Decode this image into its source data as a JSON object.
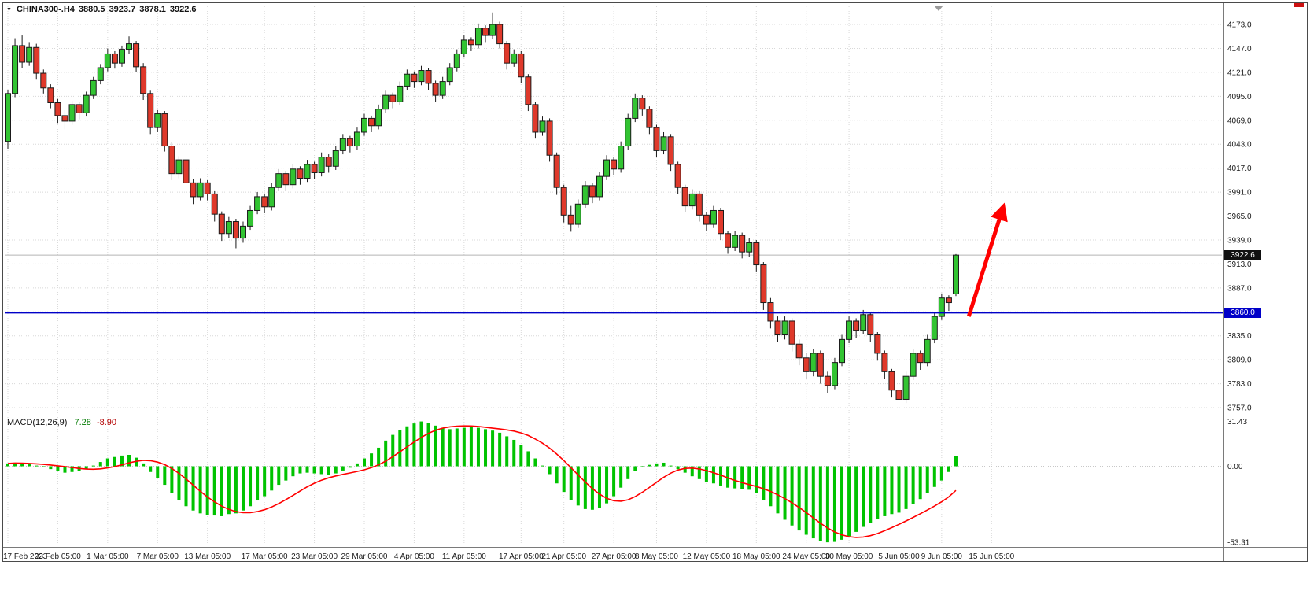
{
  "header": {
    "symbol": "CHINA300-.H4",
    "open": "3880.5",
    "high": "3923.7",
    "low": "3878.1",
    "close": "3922.6"
  },
  "macd_label": {
    "name": "MACD(12,26,9)",
    "value": "7.28",
    "signal": "-8.90"
  },
  "badges": {
    "current": "3922.6",
    "hline": "3860.0"
  },
  "colors": {
    "bull": "#32c432",
    "bear": "#df392b",
    "candle_border": "#1a1a1a",
    "macd_hist": "#00c300",
    "macd_signal": "#ff0000",
    "hline": "#0000c8",
    "arrow": "#ff0000",
    "grid": "#d8d8d8",
    "frame": "#4a4a4a",
    "current_price_line": "#b4b4b4"
  },
  "chart_data": {
    "type": "candlestick+macd",
    "symbol": "CHINA300-.H4",
    "timeframe": "H4",
    "last_quote": {
      "open": 3880.5,
      "high": 3923.7,
      "low": 3878.1,
      "close": 3922.6
    },
    "current_price": 3922.6,
    "price_axis": {
      "max": 4173.0,
      "min": 3757.0,
      "step": 26.0,
      "labels": [
        "4173.0",
        "4147.0",
        "4121.0",
        "4095.0",
        "4069.0",
        "4043.0",
        "4017.0",
        "3991.0",
        "3965.0",
        "3939.0",
        "3913.0",
        "3887.0",
        "3861.0",
        "3835.0",
        "3809.0",
        "3783.0",
        "3757.0"
      ]
    },
    "hline": {
      "price": 3860.0
    },
    "x_labels": [
      {
        "i": 0,
        "t": "17 Feb 2023"
      },
      {
        "i": 7,
        "t": "23 Feb 05:00"
      },
      {
        "i": 14,
        "t": "1 Mar 05:00"
      },
      {
        "i": 21,
        "t": "7 Mar 05:00"
      },
      {
        "i": 28,
        "t": "13 Mar 05:00"
      },
      {
        "i": 36,
        "t": "17 Mar 05:00"
      },
      {
        "i": 43,
        "t": "23 Mar 05:00"
      },
      {
        "i": 50,
        "t": "29 Mar 05:00"
      },
      {
        "i": 57,
        "t": "4 Apr 05:00"
      },
      {
        "i": 64,
        "t": "11 Apr 05:00"
      },
      {
        "i": 72,
        "t": "17 Apr 05:00"
      },
      {
        "i": 78,
        "t": "21 Apr 05:00"
      },
      {
        "i": 85,
        "t": "27 Apr 05:00"
      },
      {
        "i": 91,
        "t": "8 May 05:00"
      },
      {
        "i": 98,
        "t": "12 May 05:00"
      },
      {
        "i": 105,
        "t": "18 May 05:00"
      },
      {
        "i": 112,
        "t": "24 May 05:00"
      },
      {
        "i": 118,
        "t": "30 May 05:00"
      },
      {
        "i": 125,
        "t": "5 Jun 05:00"
      },
      {
        "i": 131,
        "t": "9 Jun 05:00"
      },
      {
        "i": 138,
        "t": "15 Jun 05:00"
      }
    ],
    "candles": [
      [
        4046,
        4102,
        4038,
        4098
      ],
      [
        4098,
        4158,
        4094,
        4150
      ],
      [
        4150,
        4161,
        4126,
        4132
      ],
      [
        4132,
        4153,
        4128,
        4148
      ],
      [
        4148,
        4152,
        4113,
        4120
      ],
      [
        4120,
        4124,
        4098,
        4104
      ],
      [
        4104,
        4108,
        4082,
        4088
      ],
      [
        4088,
        4092,
        4066,
        4074
      ],
      [
        4074,
        4080,
        4059,
        4068
      ],
      [
        4068,
        4090,
        4064,
        4086
      ],
      [
        4086,
        4089,
        4070,
        4077
      ],
      [
        4077,
        4100,
        4073,
        4096
      ],
      [
        4096,
        4116,
        4092,
        4112
      ],
      [
        4112,
        4130,
        4108,
        4126
      ],
      [
        4126,
        4147,
        4122,
        4141
      ],
      [
        4141,
        4144,
        4125,
        4131
      ],
      [
        4131,
        4150,
        4127,
        4146
      ],
      [
        4146,
        4160,
        4141,
        4152
      ],
      [
        4152,
        4155,
        4121,
        4127
      ],
      [
        4127,
        4131,
        4091,
        4098
      ],
      [
        4098,
        4101,
        4054,
        4061
      ],
      [
        4061,
        4080,
        4056,
        4076
      ],
      [
        4076,
        4079,
        4035,
        4041
      ],
      [
        4041,
        4045,
        4004,
        4011
      ],
      [
        4011,
        4030,
        4006,
        4026
      ],
      [
        4026,
        4029,
        3994,
        4001
      ],
      [
        4001,
        4005,
        3978,
        3986
      ],
      [
        3986,
        4006,
        3982,
        4001
      ],
      [
        4001,
        4004,
        3982,
        3989
      ],
      [
        3989,
        3992,
        3959,
        3967
      ],
      [
        3967,
        3970,
        3938,
        3946
      ],
      [
        3946,
        3964,
        3941,
        3959
      ],
      [
        3959,
        3962,
        3930,
        3941
      ],
      [
        3941,
        3959,
        3936,
        3954
      ],
      [
        3954,
        3976,
        3950,
        3971
      ],
      [
        3971,
        3991,
        3967,
        3986
      ],
      [
        3986,
        3989,
        3968,
        3975
      ],
      [
        3975,
        4001,
        3971,
        3996
      ],
      [
        3996,
        4016,
        3992,
        4011
      ],
      [
        4011,
        4014,
        3992,
        3999
      ],
      [
        3999,
        4021,
        3995,
        4016
      ],
      [
        4016,
        4019,
        3999,
        4006
      ],
      [
        4006,
        4026,
        4002,
        4021
      ],
      [
        4021,
        4024,
        4005,
        4012
      ],
      [
        4012,
        4034,
        4008,
        4029
      ],
      [
        4029,
        4032,
        4012,
        4019
      ],
      [
        4019,
        4041,
        4015,
        4036
      ],
      [
        4036,
        4054,
        4032,
        4049
      ],
      [
        4049,
        4052,
        4034,
        4041
      ],
      [
        4041,
        4061,
        4037,
        4056
      ],
      [
        4056,
        4076,
        4052,
        4071
      ],
      [
        4071,
        4074,
        4056,
        4063
      ],
      [
        4063,
        4086,
        4059,
        4081
      ],
      [
        4081,
        4101,
        4077,
        4096
      ],
      [
        4096,
        4099,
        4082,
        4089
      ],
      [
        4089,
        4111,
        4085,
        4106
      ],
      [
        4106,
        4124,
        4102,
        4119
      ],
      [
        4119,
        4122,
        4104,
        4111
      ],
      [
        4111,
        4128,
        4107,
        4123
      ],
      [
        4123,
        4126,
        4102,
        4109
      ],
      [
        4109,
        4112,
        4089,
        4096
      ],
      [
        4096,
        4116,
        4092,
        4111
      ],
      [
        4111,
        4131,
        4107,
        4126
      ],
      [
        4126,
        4146,
        4122,
        4141
      ],
      [
        4141,
        4161,
        4137,
        4156
      ],
      [
        4156,
        4159,
        4144,
        4151
      ],
      [
        4151,
        4174,
        4147,
        4169
      ],
      [
        4169,
        4172,
        4153,
        4161
      ],
      [
        4161,
        4186,
        4157,
        4173
      ],
      [
        4173,
        4176,
        4147,
        4152
      ],
      [
        4152,
        4155,
        4124,
        4131
      ],
      [
        4131,
        4146,
        4127,
        4141
      ],
      [
        4141,
        4144,
        4109,
        4116
      ],
      [
        4116,
        4119,
        4079,
        4086
      ],
      [
        4086,
        4089,
        4049,
        4056
      ],
      [
        4056,
        4073,
        4052,
        4068
      ],
      [
        4068,
        4071,
        4024,
        4031
      ],
      [
        4031,
        4034,
        3988,
        3996
      ],
      [
        3996,
        3999,
        3958,
        3966
      ],
      [
        3966,
        3976,
        3948,
        3956
      ],
      [
        3956,
        3983,
        3952,
        3978
      ],
      [
        3978,
        4003,
        3974,
        3998
      ],
      [
        3998,
        4001,
        3979,
        3986
      ],
      [
        3986,
        4013,
        3982,
        4008
      ],
      [
        4008,
        4031,
        4004,
        4026
      ],
      [
        4026,
        4029,
        4009,
        4016
      ],
      [
        4016,
        4046,
        4012,
        4041
      ],
      [
        4041,
        4076,
        4037,
        4071
      ],
      [
        4071,
        4098,
        4067,
        4093
      ],
      [
        4093,
        4096,
        4074,
        4081
      ],
      [
        4081,
        4084,
        4054,
        4061
      ],
      [
        4061,
        4064,
        4029,
        4036
      ],
      [
        4036,
        4056,
        4032,
        4051
      ],
      [
        4051,
        4054,
        4014,
        4021
      ],
      [
        4021,
        4024,
        3989,
        3996
      ],
      [
        3996,
        3999,
        3969,
        3976
      ],
      [
        3976,
        3994,
        3972,
        3989
      ],
      [
        3989,
        3992,
        3959,
        3966
      ],
      [
        3966,
        3969,
        3949,
        3956
      ],
      [
        3956,
        3976,
        3952,
        3971
      ],
      [
        3971,
        3974,
        3939,
        3946
      ],
      [
        3946,
        3949,
        3924,
        3931
      ],
      [
        3931,
        3949,
        3927,
        3944
      ],
      [
        3944,
        3947,
        3919,
        3926
      ],
      [
        3926,
        3941,
        3921,
        3936
      ],
      [
        3936,
        3939,
        3904,
        3912
      ],
      [
        3912,
        3915,
        3863,
        3871
      ],
      [
        3871,
        3876,
        3843,
        3851
      ],
      [
        3851,
        3856,
        3828,
        3836
      ],
      [
        3836,
        3856,
        3831,
        3851
      ],
      [
        3851,
        3854,
        3818,
        3826
      ],
      [
        3826,
        3831,
        3803,
        3811
      ],
      [
        3811,
        3816,
        3788,
        3796
      ],
      [
        3796,
        3821,
        3791,
        3816
      ],
      [
        3816,
        3819,
        3783,
        3791
      ],
      [
        3791,
        3796,
        3773,
        3781
      ],
      [
        3781,
        3811,
        3777,
        3806
      ],
      [
        3806,
        3836,
        3802,
        3831
      ],
      [
        3831,
        3856,
        3827,
        3851
      ],
      [
        3851,
        3854,
        3833,
        3841
      ],
      [
        3841,
        3863,
        3837,
        3858
      ],
      [
        3858,
        3861,
        3828,
        3836
      ],
      [
        3836,
        3839,
        3808,
        3816
      ],
      [
        3816,
        3819,
        3788,
        3796
      ],
      [
        3796,
        3799,
        3768,
        3776
      ],
      [
        3776,
        3779,
        3762,
        3766
      ],
      [
        3766,
        3796,
        3762,
        3791
      ],
      [
        3791,
        3821,
        3787,
        3816
      ],
      [
        3816,
        3819,
        3798,
        3806
      ],
      [
        3806,
        3836,
        3802,
        3831
      ],
      [
        3831,
        3861,
        3827,
        3856
      ],
      [
        3856,
        3881,
        3852,
        3876
      ],
      [
        3876,
        3879,
        3862,
        3871
      ],
      [
        3880.5,
        3923.7,
        3878.1,
        3922.6
      ]
    ],
    "macd": {
      "label": "MACD(12,26,9)",
      "value": 7.28,
      "signal_value": -8.9,
      "axis": {
        "max": 31.43,
        "zero": 0.0,
        "min": -53.31,
        "labels": [
          "31.43",
          "0.00",
          "-53.31"
        ]
      },
      "hist": [
        2,
        2.5,
        2,
        1.5,
        0.5,
        -0.5,
        -2,
        -3.5,
        -4.5,
        -4,
        -3.5,
        -2,
        0.5,
        3,
        5.5,
        6.5,
        7.5,
        8,
        6,
        2,
        -4,
        -8,
        -13,
        -19,
        -24,
        -28,
        -31,
        -33,
        -34,
        -34.5,
        -35,
        -33.5,
        -33,
        -31,
        -28,
        -24,
        -21,
        -17,
        -13,
        -10,
        -7,
        -5,
        -4.5,
        -5,
        -5.5,
        -6,
        -5,
        -3,
        -1,
        2,
        5.5,
        9,
        13,
        18,
        22,
        25.5,
        28,
        30,
        31.4,
        30.5,
        28.5,
        27,
        26,
        26.5,
        27,
        27.5,
        27,
        26,
        25,
        23.5,
        21,
        18.5,
        15,
        10.5,
        5.5,
        0.5,
        -5.5,
        -12,
        -18,
        -23.5,
        -27.5,
        -30,
        -30.5,
        -29,
        -26,
        -21,
        -15,
        -9,
        -3.5,
        -0.5,
        1,
        2,
        2.5,
        0.5,
        -2,
        -4.5,
        -7,
        -9,
        -11,
        -12,
        -13.5,
        -15,
        -15.5,
        -16,
        -16.5,
        -19,
        -23.5,
        -28,
        -33,
        -37.5,
        -41.5,
        -45,
        -48,
        -50.5,
        -52.5,
        -53.3,
        -53,
        -51.5,
        -49,
        -46,
        -42.5,
        -39.5,
        -37,
        -35,
        -33.5,
        -32.5,
        -30,
        -26.5,
        -23,
        -19,
        -14.5,
        -10,
        -4,
        7.28
      ],
      "signal_smoothing": 9
    },
    "trend_arrow": {
      "from_i": 134.8,
      "from_price": 3856,
      "to_i": 139.6,
      "to_price": 3974
    }
  }
}
